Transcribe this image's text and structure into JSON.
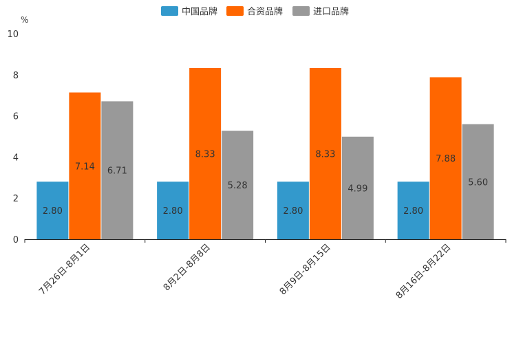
{
  "chart_data": {
    "type": "bar",
    "title": "",
    "xlabel": "",
    "ylabel": "%",
    "ylim": [
      0,
      10
    ],
    "yticks": [
      0,
      2,
      4,
      6,
      8,
      10
    ],
    "grid": false,
    "legend_position": "top-center",
    "categories": [
      "7月26日-8月1日",
      "8月2日-8月8日",
      "8月9日-8月15日",
      "8月16日-8月22日"
    ],
    "series": [
      {
        "name": "中国品牌",
        "color": "#3399cc",
        "values": [
          2.8,
          2.8,
          2.8,
          2.8
        ],
        "labels": [
          "2.80",
          "2.80",
          "2.80",
          "2.80"
        ]
      },
      {
        "name": "合资品牌",
        "color": "#ff6600",
        "values": [
          7.14,
          8.33,
          8.33,
          7.88
        ],
        "labels": [
          "7.14",
          "8.33",
          "8.33",
          "7.88"
        ]
      },
      {
        "name": "进口品牌",
        "color": "#999999",
        "values": [
          6.71,
          5.28,
          4.99,
          5.6
        ],
        "labels": [
          "6.71",
          "5.28",
          "4.99",
          "5.60"
        ]
      }
    ]
  }
}
